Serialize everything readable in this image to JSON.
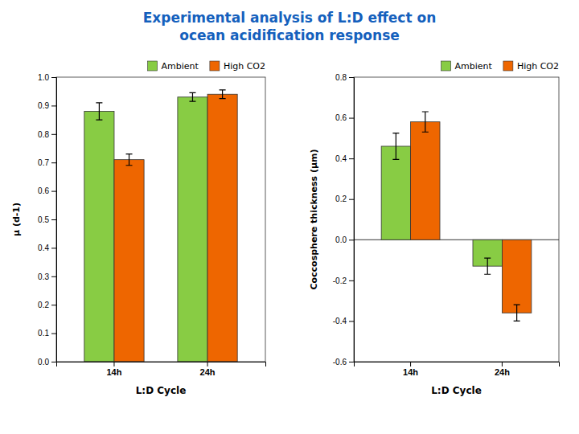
{
  "chart_data": [
    {
      "type": "bar",
      "title": "Experimental analysis of L:D effect on",
      "subtitle": "ocean acidification response",
      "categories": [
        "14h",
        "24h"
      ],
      "series": [
        {
          "name": "Ambient",
          "color": "#88CC44",
          "values": [
            0.88,
            0.93
          ],
          "errors": [
            0.03,
            0.015
          ]
        },
        {
          "name": "High CO2",
          "color": "#EE6600",
          "values": [
            0.71,
            0.94
          ],
          "errors": [
            0.02,
            0.015
          ]
        }
      ],
      "xlabel": "L:D Cycle",
      "ylabel": "μ (d-1)",
      "ylim": [
        0,
        1.0
      ],
      "yticks": [
        {
          "value": 0,
          "label": "0.0"
        },
        0.1,
        0.2,
        0.3,
        0.4,
        0.5,
        0.6,
        0.7,
        0.8,
        0.9,
        {
          "value": 1.0,
          "label": "1.0"
        }
      ],
      "grid": false,
      "legend": "upper right"
    },
    {
      "type": "bar",
      "categories": [
        "14h",
        "24h"
      ],
      "series": [
        {
          "name": "Ambient",
          "color": "#88CC44",
          "values": [
            0.46,
            -0.13
          ],
          "errors": [
            0.065,
            0.04
          ]
        },
        {
          "name": "High CO2",
          "color": "#EE6600",
          "values": [
            0.58,
            -0.36
          ],
          "errors": [
            0.05,
            0.04
          ]
        }
      ],
      "xlabel": "L:D Cycle",
      "ylabel": "Coccosphere thickness (µm)",
      "ylim": [
        -0.6,
        0.8
      ],
      "yticks": [
        -0.6,
        -0.4,
        -0.2,
        {
          "value": 0.0,
          "label": "0.0"
        },
        0.2,
        0.4,
        0.6,
        0.8
      ],
      "grid": false,
      "legend": "upper right"
    }
  ]
}
